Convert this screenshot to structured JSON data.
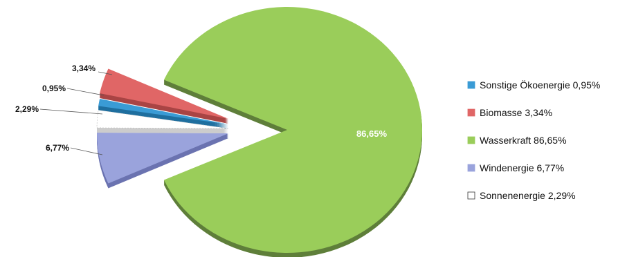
{
  "chart_data": {
    "type": "pie",
    "style": "3d-exploded",
    "title": "",
    "legend_placement": "right",
    "slices": [
      {
        "name": "Sonstige Ökoenergie",
        "value": 0.95,
        "label": "0,95%",
        "legend_label": "Sonstige Ökoenergie 0,95%",
        "color": "#3a9bd5",
        "side_color": "#1f6f9f"
      },
      {
        "name": "Biomasse",
        "value": 3.34,
        "label": "3,34%",
        "legend_label": "Biomasse 3,34%",
        "color": "#e06666",
        "side_color": "#a94444"
      },
      {
        "name": "Wasserkraft",
        "value": 86.65,
        "label": "86,65%",
        "legend_label": "Wasserkraft 86,65%",
        "color": "#9acd5a",
        "side_color": "#5f7f3a"
      },
      {
        "name": "Windenergie",
        "value": 6.77,
        "label": "6,77%",
        "legend_label": "Windenergie 6,77%",
        "color": "#9aa3dc",
        "side_color": "#6b73b0"
      },
      {
        "name": "Sonnenenergie",
        "value": 2.29,
        "label": "2,29%",
        "legend_label": "Sonnenenergie 2,29%",
        "color": "#ffffff",
        "side_color": "#cccccc"
      }
    ]
  }
}
